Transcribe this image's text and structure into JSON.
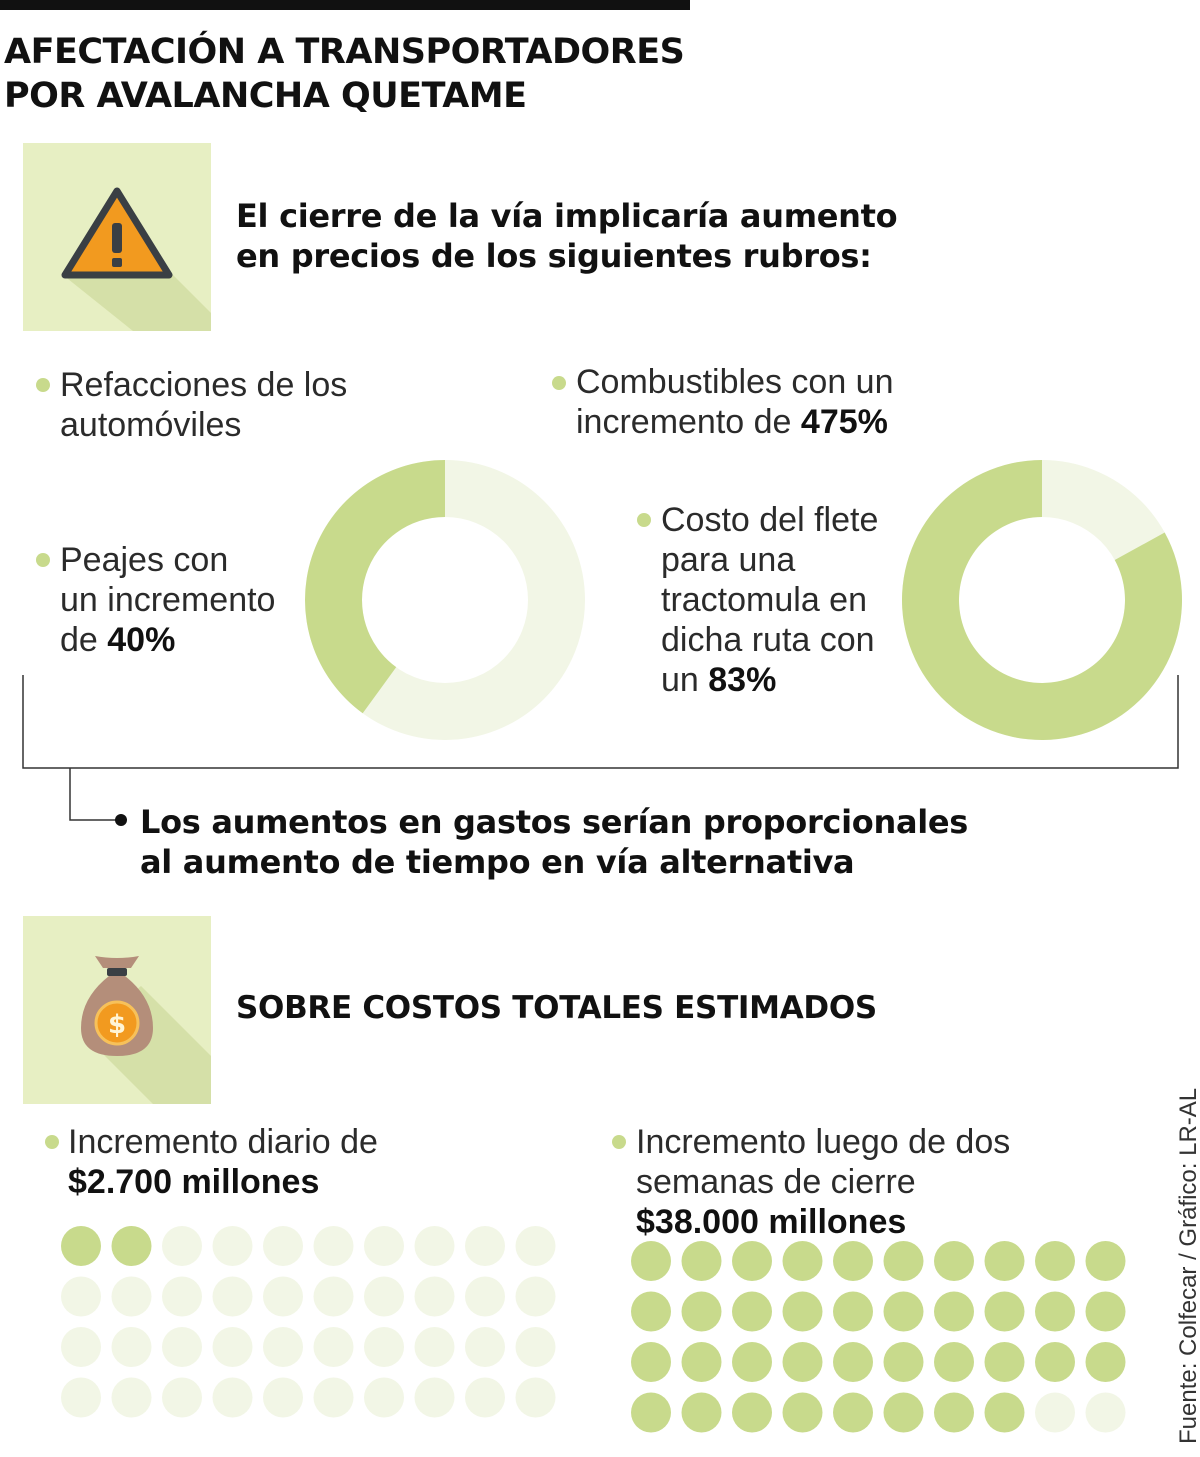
{
  "title": {
    "line1": "AFECTACIÓN A TRANSPORTADORES",
    "line2": "POR AVALANCHA QUETAME"
  },
  "section1": {
    "icon": "warning-icon",
    "heading_line1": "El cierre de la vía implicaría aumento",
    "heading_line2": "en precios de los siguientes rubros:"
  },
  "items": {
    "refacciones": {
      "line1": "Refacciones de los",
      "line2": "automóviles"
    },
    "combustibles": {
      "line1": "Combustibles con un",
      "line2_text": "incremento de ",
      "value": "475%"
    },
    "peajes": {
      "line1": "Peajes con",
      "line2": "un incremento",
      "line3_text": "de ",
      "value": "40%"
    },
    "flete": {
      "line1": "Costo del flete",
      "line2": "para una",
      "line3": "tractomula en",
      "line4": "dicha ruta con",
      "line5_text": "un ",
      "value": "83%"
    }
  },
  "summary": {
    "line1": "Los aumentos en gastos serían proporcionales",
    "line2": "al aumento de tiempo en vía alternativa"
  },
  "section2": {
    "icon": "money-bag-icon",
    "heading": "SOBRE COSTOS TOTALES ESTIMADOS"
  },
  "costs": {
    "daily": {
      "line1": "Incremento diario de",
      "value": "$2.700 millones"
    },
    "two_weeks": {
      "line1": "Incremento luego de dos",
      "line2": "semanas de cierre",
      "value": "$38.000 millones"
    }
  },
  "source": "Fuente: Colfecar / Gráfico: LR-AL",
  "colors": {
    "accent": "#c8da8c",
    "light": "#f2f6e6",
    "icon_bg": "#e7efc3",
    "warning_orange": "#f29a1f"
  },
  "chart_data": [
    {
      "type": "pie",
      "name": "Peajes",
      "values": [
        40,
        60
      ],
      "unit": "%"
    },
    {
      "type": "pie",
      "name": "Costo del flete",
      "values": [
        83,
        17
      ],
      "unit": "%"
    },
    {
      "type": "dot-grid",
      "name": "Incremento diario",
      "rows": 4,
      "cols": 10,
      "filled": 2,
      "total": 40
    },
    {
      "type": "dot-grid",
      "name": "Incremento luego de dos semanas",
      "rows": 4,
      "cols": 10,
      "filled": 38,
      "total": 40
    }
  ]
}
